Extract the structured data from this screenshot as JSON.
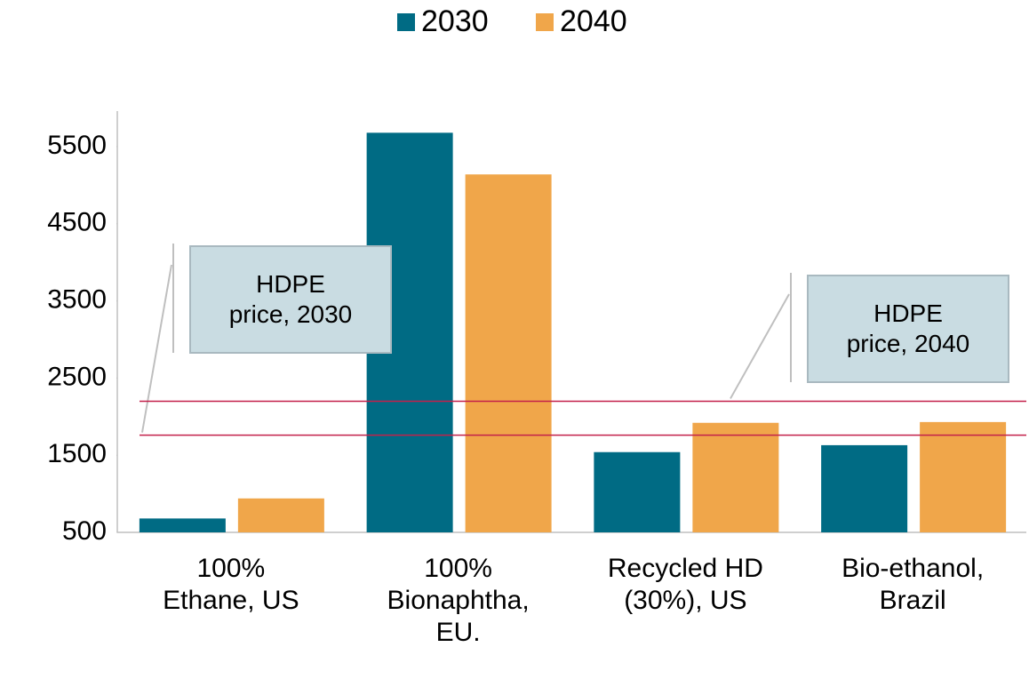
{
  "chart_data": {
    "type": "bar",
    "categories": [
      "100%\nEthane, US",
      "100%\nBionaphtha,\nEU.",
      "Recycled HD\n(30%), US",
      "Bio-ethanol,\nBrazil"
    ],
    "series": [
      {
        "name": "2030",
        "color": "#006b84",
        "values": [
          680,
          5680,
          1540,
          1630
        ]
      },
      {
        "name": "2040",
        "color": "#f0a64a",
        "values": [
          940,
          5140,
          1920,
          1930
        ]
      }
    ],
    "ylim": [
      500,
      6000
    ],
    "yticks": [
      500,
      1500,
      2500,
      3500,
      4500,
      5500
    ],
    "reference_lines": [
      {
        "label": "HDPE\nprice, 2030",
        "value": 1760,
        "color": "#c3204a"
      },
      {
        "label": "HDPE\nprice, 2040",
        "value": 2200,
        "color": "#c3204a"
      }
    ],
    "legend": "top"
  }
}
